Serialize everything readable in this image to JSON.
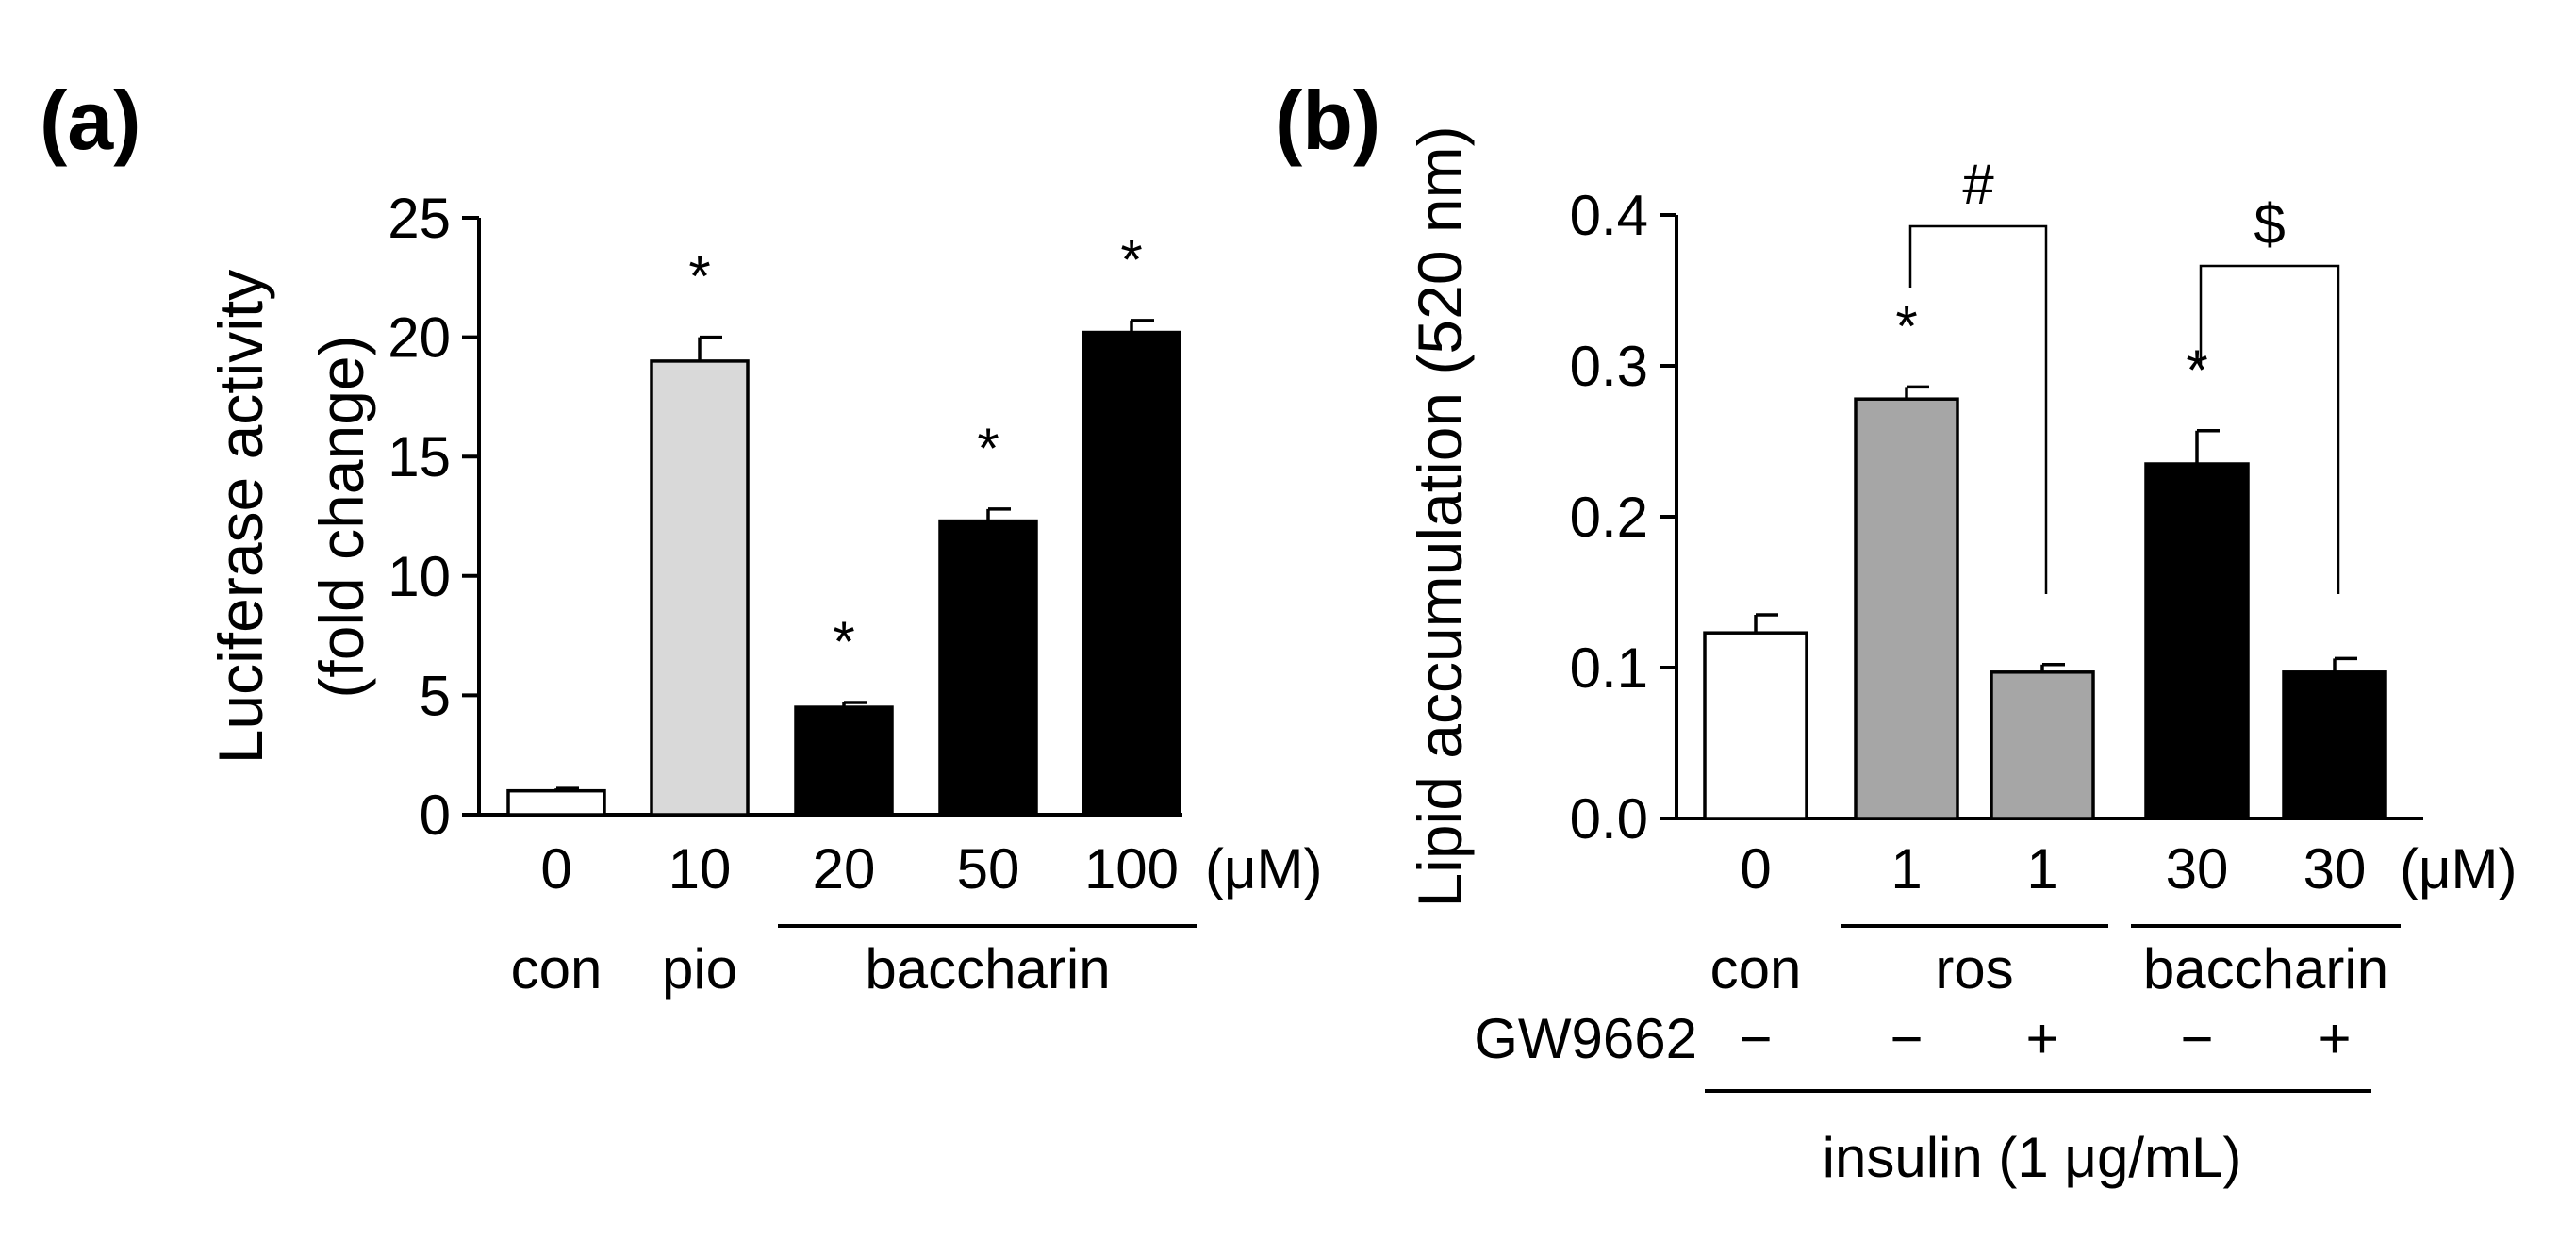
{
  "chart_data": [
    {
      "panel": "(a)",
      "type": "bar",
      "ylabel_lines": [
        "Luciferase activity",
        "(fold change)"
      ],
      "ylim": [
        0,
        25
      ],
      "yticks": [
        "0",
        "5",
        "10",
        "15",
        "20",
        "25"
      ],
      "unit": "(μM)",
      "doses": [
        "0",
        "10",
        "20",
        "50",
        "100"
      ],
      "values": [
        1.0,
        19.0,
        4.5,
        12.3,
        20.2
      ],
      "errors": [
        0.1,
        1.0,
        0.2,
        0.5,
        0.5
      ],
      "colors": [
        "#ffffff",
        "#d9d9d9",
        "#000000",
        "#000000",
        "#000000"
      ],
      "significance": [
        "",
        "*",
        "*",
        "*",
        "*"
      ],
      "groups": [
        {
          "label": "con",
          "from": 0,
          "to": 0,
          "underline": false
        },
        {
          "label": "pio",
          "from": 1,
          "to": 1,
          "underline": false
        },
        {
          "label": "baccharin",
          "from": 2,
          "to": 4,
          "underline": true
        }
      ]
    },
    {
      "panel": "(b)",
      "type": "bar",
      "ylabel": "Lipid accumulation  (520 nm)",
      "ylim": [
        0,
        0.4
      ],
      "yticks": [
        "0.0",
        "0.1",
        "0.2",
        "0.3",
        "0.4"
      ],
      "unit": "(μM)",
      "doses": [
        "0",
        "1",
        "1",
        "30",
        "30"
      ],
      "values": [
        0.123,
        0.278,
        0.097,
        0.235,
        0.097
      ],
      "errors": [
        0.012,
        0.008,
        0.005,
        0.022,
        0.009
      ],
      "colors": [
        "#ffffff",
        "#a6a6a6",
        "#a6a6a6",
        "#000000",
        "#000000"
      ],
      "significance": [
        "",
        "*",
        "",
        "*",
        ""
      ],
      "groups": [
        {
          "label": "con",
          "from": 0,
          "to": 0,
          "underline": false
        },
        {
          "label": "ros",
          "from": 1,
          "to": 2,
          "underline": true
        },
        {
          "label": "baccharin",
          "from": 3,
          "to": 4,
          "underline": true
        }
      ],
      "gw_label": "GW9662",
      "gw_signs": [
        "−",
        "−",
        "+",
        "−",
        "+"
      ],
      "brackets": [
        {
          "from": 1,
          "to": 2,
          "symbol": "#"
        },
        {
          "from": 3,
          "to": 4,
          "symbol": "$"
        }
      ],
      "footer": "insulin (1 μg/mL)"
    }
  ]
}
